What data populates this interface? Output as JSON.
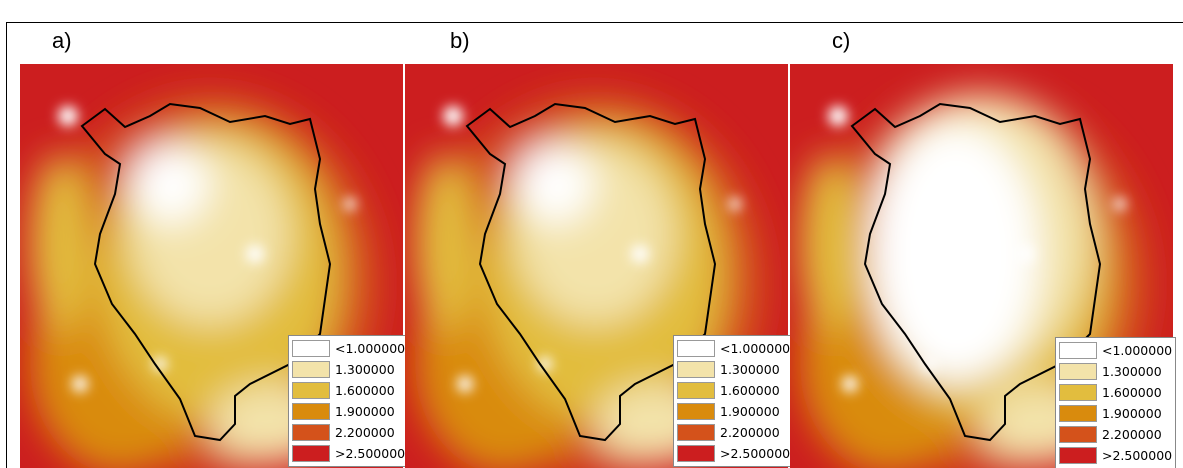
{
  "panels": [
    {
      "label": "a)",
      "legend": [
        {
          "label": "<1.000000",
          "color": "#ffffff"
        },
        {
          "label": "1.300000",
          "color": "#f3e3aa"
        },
        {
          "label": "1.600000",
          "color": "#e2bd3e"
        },
        {
          "label": "1.900000",
          "color": "#d98b0d"
        },
        {
          "label": "2.200000",
          "color": "#d4521b"
        },
        {
          "label": ">2.500000",
          "color": "#cc1e1f"
        }
      ]
    },
    {
      "label": "b)",
      "legend": [
        {
          "label": "<1.000000",
          "color": "#ffffff"
        },
        {
          "label": "1.300000",
          "color": "#f3e3aa"
        },
        {
          "label": "1.600000",
          "color": "#e2bd3e"
        },
        {
          "label": "1.900000",
          "color": "#d98b0d"
        },
        {
          "label": "2.200000",
          "color": "#d4521b"
        },
        {
          "label": ">2.500000",
          "color": "#cc1e1f"
        }
      ]
    },
    {
      "label": "c)",
      "legend": [
        {
          "label": "<1.000000",
          "color": "#ffffff"
        },
        {
          "label": "1.300000",
          "color": "#f3e3aa"
        },
        {
          "label": "1.600000",
          "color": "#e2bd3e"
        },
        {
          "label": "1.900000",
          "color": "#d98b0d"
        },
        {
          "label": "2.200000",
          "color": "#d4521b"
        },
        {
          "label": ">2.500000",
          "color": "#cc1e1f"
        }
      ]
    }
  ]
}
